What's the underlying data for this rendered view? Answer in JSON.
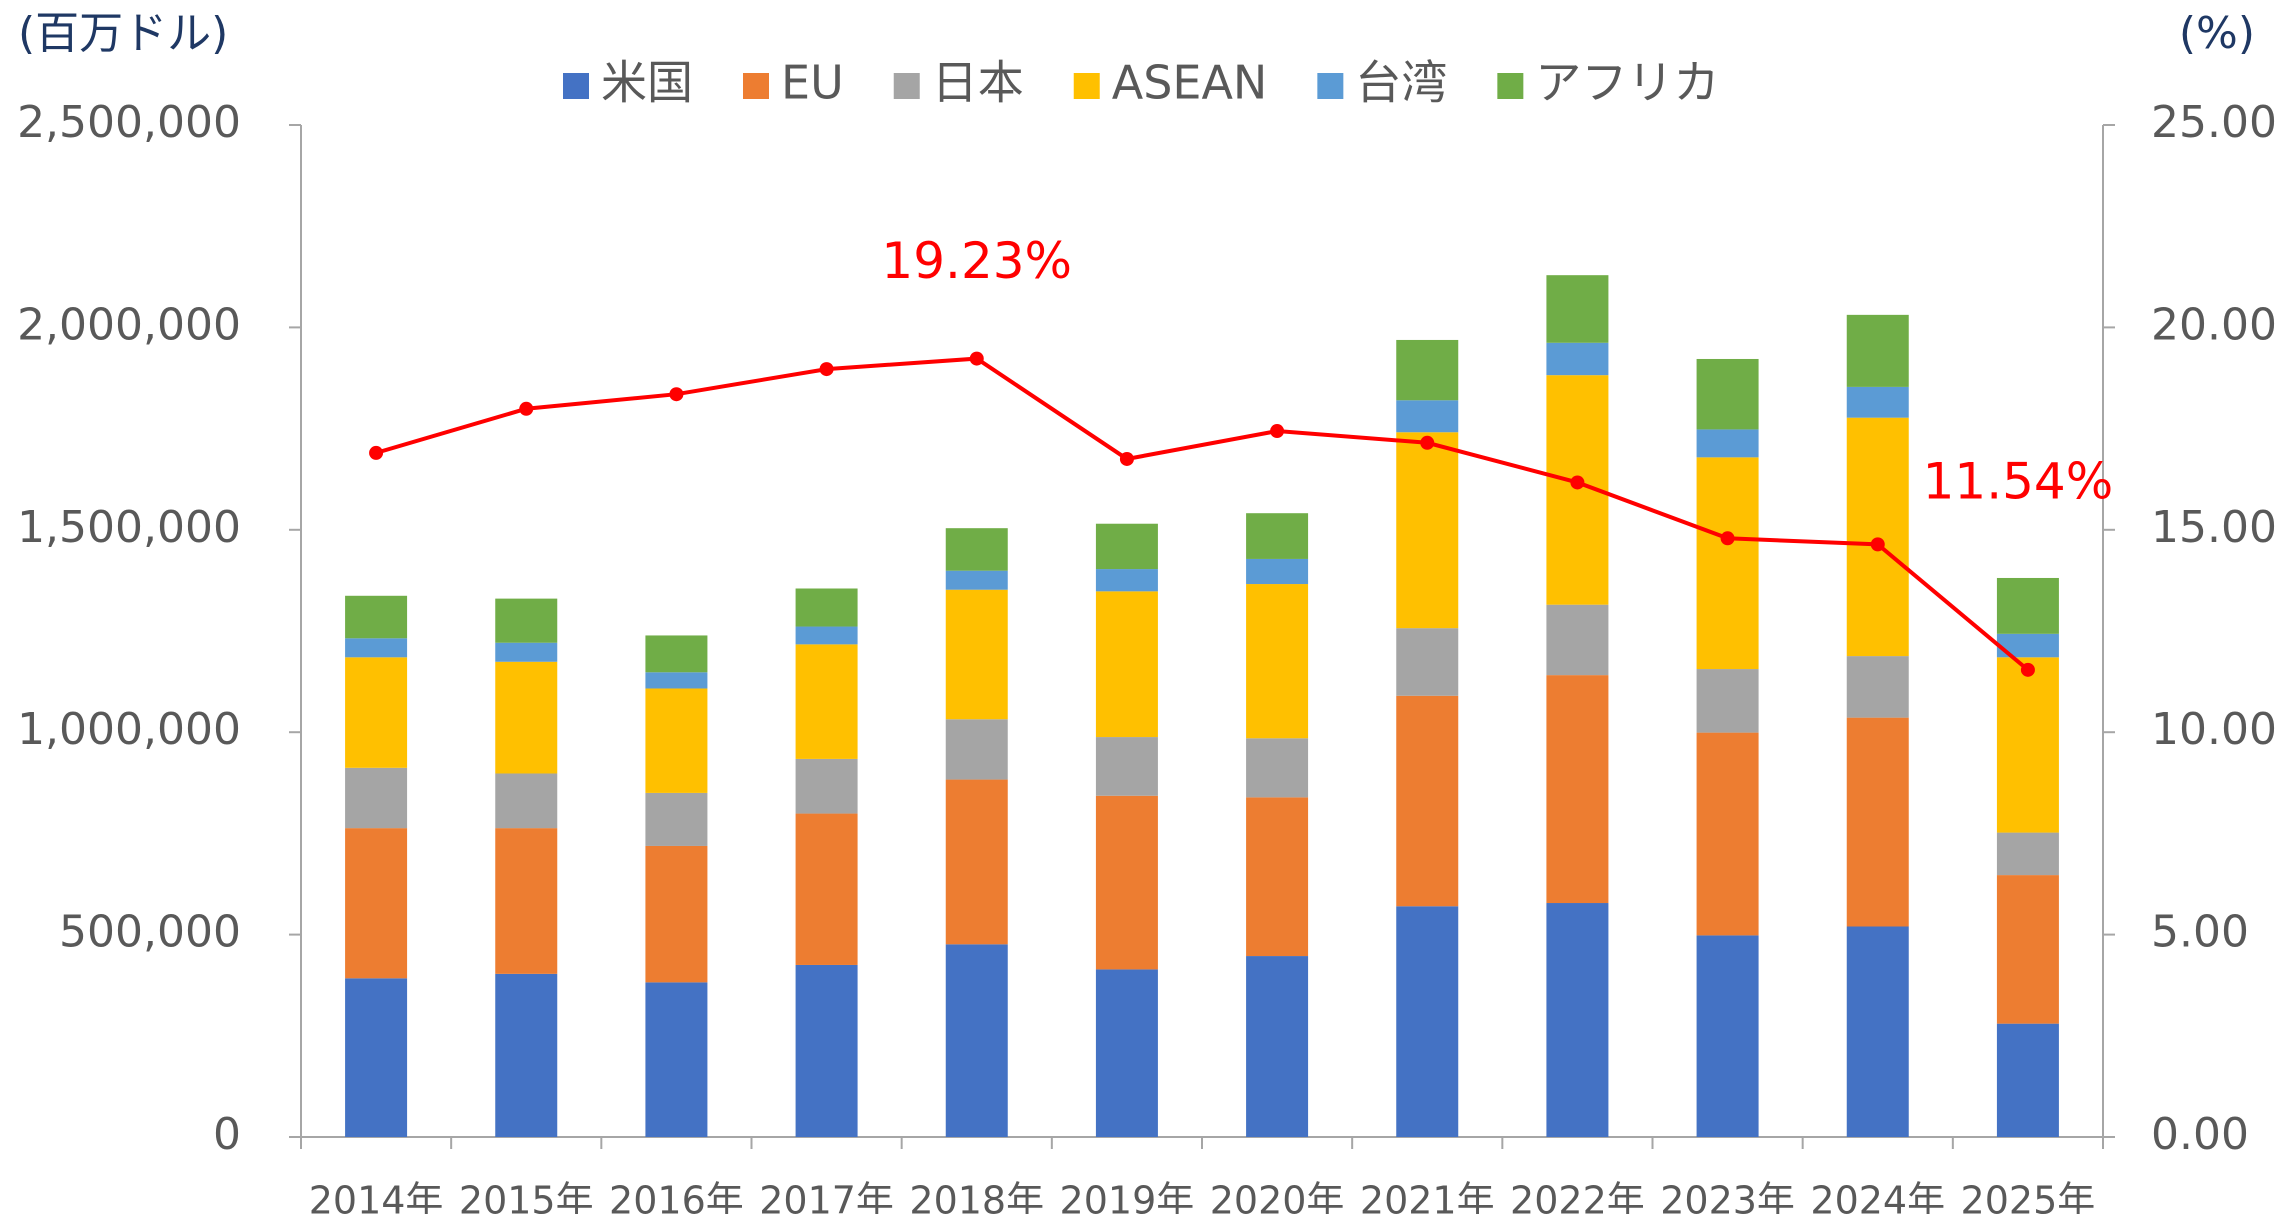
{
  "chart_data": {
    "type": "bar",
    "stacked": true,
    "y_unit_label": "(百万ドル)",
    "y2_unit_label": "(%)",
    "categories": [
      "2014年",
      "2015年",
      "2016年",
      "2017年",
      "2018年",
      "2019年",
      "2020年",
      "2021年",
      "2022年",
      "2023年",
      "2024年",
      "2025年"
    ],
    "series": [
      {
        "name": "米国",
        "color": "#4472c4",
        "values": [
          392000,
          403000,
          382000,
          425000,
          476000,
          414000,
          447000,
          570000,
          578000,
          498000,
          520000,
          280000
        ]
      },
      {
        "name": "EU",
        "color": "#ed7d31",
        "values": [
          371000,
          360000,
          337000,
          374000,
          407000,
          429000,
          392000,
          520000,
          563000,
          501000,
          516000,
          367000
        ]
      },
      {
        "name": "日本",
        "color": "#a5a5a5",
        "values": [
          149000,
          135000,
          131000,
          135000,
          149000,
          145000,
          146000,
          167000,
          174000,
          157000,
          152000,
          105000
        ]
      },
      {
        "name": "ASEAN",
        "color": "#ffc000",
        "values": [
          273000,
          276000,
          258000,
          283000,
          320000,
          360000,
          381000,
          484000,
          567000,
          523000,
          589000,
          433000
        ]
      },
      {
        "name": "台湾",
        "color": "#5b9bd5",
        "values": [
          47000,
          47000,
          40000,
          44000,
          47000,
          55000,
          62000,
          79000,
          80000,
          69000,
          76000,
          58000
        ]
      },
      {
        "name": "アフリカ",
        "color": "#70ad47",
        "values": [
          105000,
          109000,
          91000,
          94000,
          105000,
          112000,
          113000,
          149000,
          167000,
          174000,
          178000,
          138000
        ]
      },
      {
        "type": "line",
        "axis": "y2",
        "color": "#ff0000",
        "values": [
          16.9,
          17.99,
          18.35,
          18.97,
          19.23,
          16.75,
          17.44,
          17.15,
          16.17,
          14.79,
          14.64,
          11.54
        ],
        "value_labels": [
          null,
          null,
          null,
          null,
          "19.23%",
          null,
          null,
          null,
          null,
          null,
          null,
          "11.54%"
        ]
      }
    ],
    "ylim": [
      0,
      2500000
    ],
    "yticks": [
      0,
      {
        "value": 500000,
        "label": "500,000"
      },
      {
        "value": 1000000,
        "label": "1,000,000"
      },
      {
        "value": 1500000,
        "label": "1,500,000"
      },
      {
        "value": 2000000,
        "label": "2,000,000"
      },
      {
        "value": 2500000,
        "label": "2,500,000"
      }
    ],
    "y2lim": [
      0,
      25
    ],
    "y2ticks": [
      {
        "value": 0,
        "label": "0.00"
      },
      {
        "value": 5,
        "label": "5.00"
      },
      {
        "value": 10,
        "label": "10.00"
      },
      {
        "value": 15,
        "label": "15.00"
      },
      {
        "value": 20,
        "label": "20.00"
      },
      {
        "value": 25,
        "label": "25.00"
      }
    ],
    "grid": false,
    "legend": "top"
  }
}
